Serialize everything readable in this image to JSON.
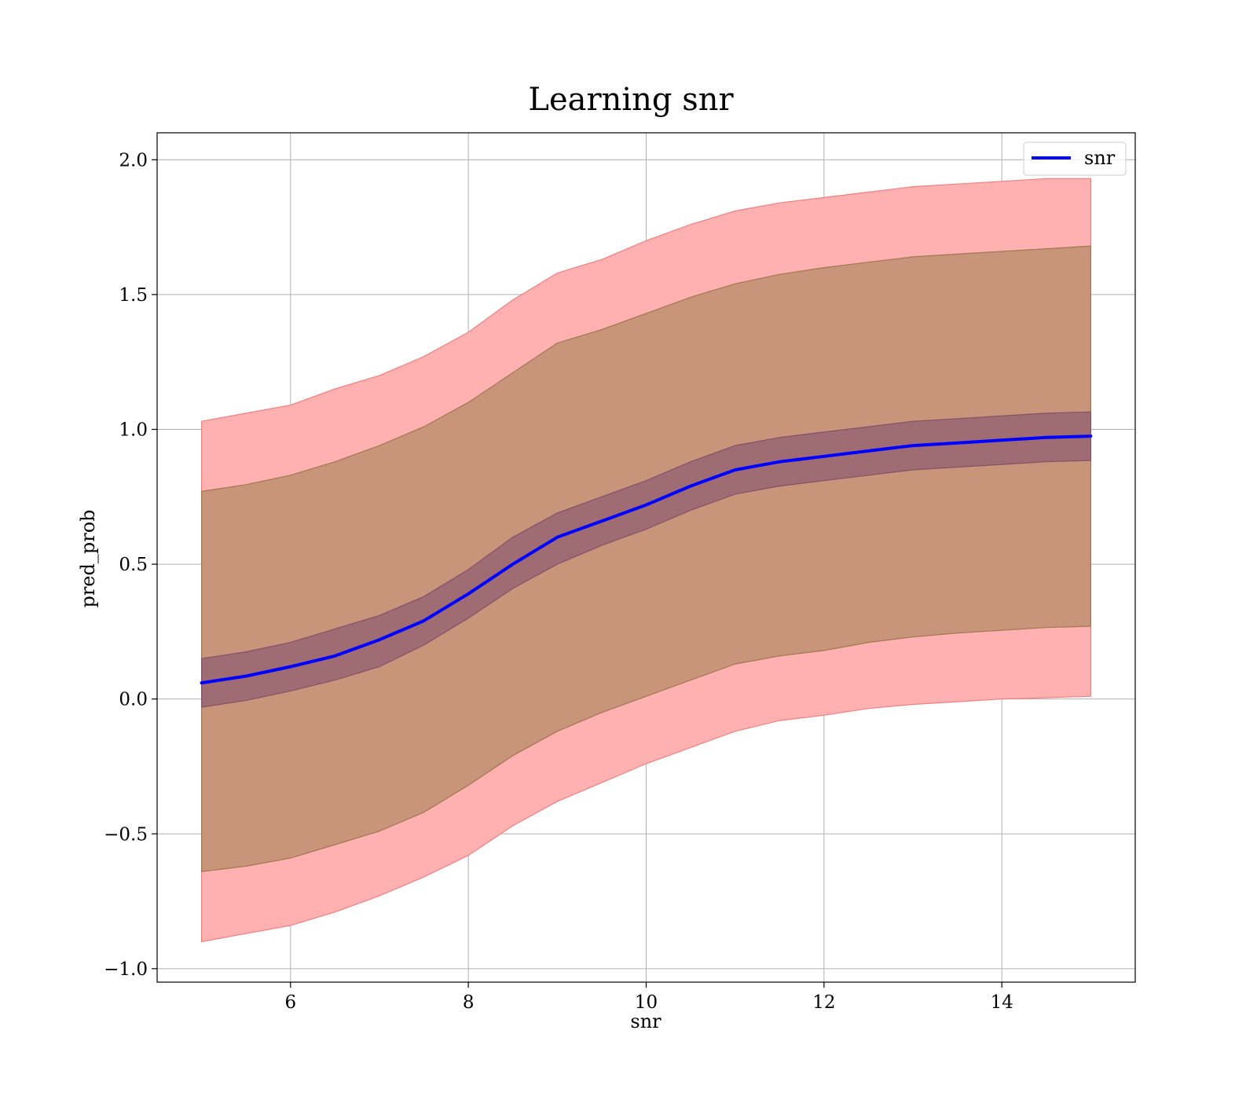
{
  "chart_data": {
    "type": "line",
    "title": "Learning snr",
    "xlabel": "snr",
    "ylabel": "pred_prob",
    "xlim": [
      4.5,
      15.5
    ],
    "ylim": [
      -1.05,
      2.1
    ],
    "x_ticks": [
      6,
      8,
      10,
      12,
      14
    ],
    "y_ticks": [
      -1.0,
      -0.5,
      0.0,
      0.5,
      1.0,
      1.5,
      2.0
    ],
    "y_tick_labels": [
      "−1.0",
      "−0.5",
      "0.0",
      "0.5",
      "1.0",
      "1.5",
      "2.0"
    ],
    "x_tick_labels": [
      "6",
      "8",
      "10",
      "12",
      "14"
    ],
    "grid": true,
    "legend_position": "top-right",
    "colors": {
      "line": "#0000ff",
      "band_outer": "#ffb0b0",
      "band_outer_edge": "#f08080",
      "band_middle": "#c8957a",
      "band_middle_edge": "#a07850",
      "band_inner": "#9f6c74",
      "band_inner_edge": "#845068"
    },
    "x": [
      5,
      5.5,
      6,
      6.5,
      7,
      7.5,
      8,
      8.5,
      9,
      9.5,
      10,
      10.5,
      11,
      11.5,
      12,
      12.5,
      13,
      13.5,
      14,
      14.5,
      15
    ],
    "series": [
      {
        "name": "snr",
        "values": [
          0.06,
          0.085,
          0.12,
          0.16,
          0.22,
          0.29,
          0.39,
          0.5,
          0.6,
          0.66,
          0.72,
          0.79,
          0.85,
          0.88,
          0.9,
          0.92,
          0.94,
          0.95,
          0.96,
          0.97,
          0.975
        ]
      }
    ],
    "bands": [
      {
        "level": "outer",
        "upper": [
          1.03,
          1.06,
          1.09,
          1.15,
          1.2,
          1.27,
          1.36,
          1.48,
          1.58,
          1.63,
          1.7,
          1.76,
          1.81,
          1.84,
          1.86,
          1.88,
          1.9,
          1.91,
          1.92,
          1.93,
          1.93
        ],
        "lower": [
          -0.9,
          -0.87,
          -0.84,
          -0.79,
          -0.73,
          -0.66,
          -0.58,
          -0.47,
          -0.38,
          -0.31,
          -0.24,
          -0.18,
          -0.12,
          -0.08,
          -0.06,
          -0.035,
          -0.02,
          -0.01,
          0.0,
          0.005,
          0.01
        ]
      },
      {
        "level": "middle",
        "upper": [
          0.77,
          0.795,
          0.83,
          0.88,
          0.94,
          1.01,
          1.1,
          1.21,
          1.32,
          1.37,
          1.43,
          1.49,
          1.54,
          1.575,
          1.6,
          1.62,
          1.64,
          1.65,
          1.66,
          1.67,
          1.68
        ],
        "lower": [
          -0.64,
          -0.62,
          -0.59,
          -0.54,
          -0.49,
          -0.42,
          -0.32,
          -0.21,
          -0.12,
          -0.05,
          0.01,
          0.07,
          0.13,
          0.16,
          0.18,
          0.21,
          0.23,
          0.245,
          0.255,
          0.265,
          0.27
        ]
      },
      {
        "level": "inner",
        "upper": [
          0.15,
          0.175,
          0.21,
          0.26,
          0.31,
          0.38,
          0.48,
          0.6,
          0.69,
          0.75,
          0.81,
          0.88,
          0.94,
          0.97,
          0.99,
          1.01,
          1.03,
          1.04,
          1.05,
          1.06,
          1.065
        ],
        "lower": [
          -0.03,
          -0.005,
          0.03,
          0.07,
          0.12,
          0.2,
          0.3,
          0.41,
          0.5,
          0.57,
          0.63,
          0.7,
          0.76,
          0.79,
          0.81,
          0.83,
          0.85,
          0.86,
          0.87,
          0.88,
          0.885
        ]
      }
    ]
  }
}
